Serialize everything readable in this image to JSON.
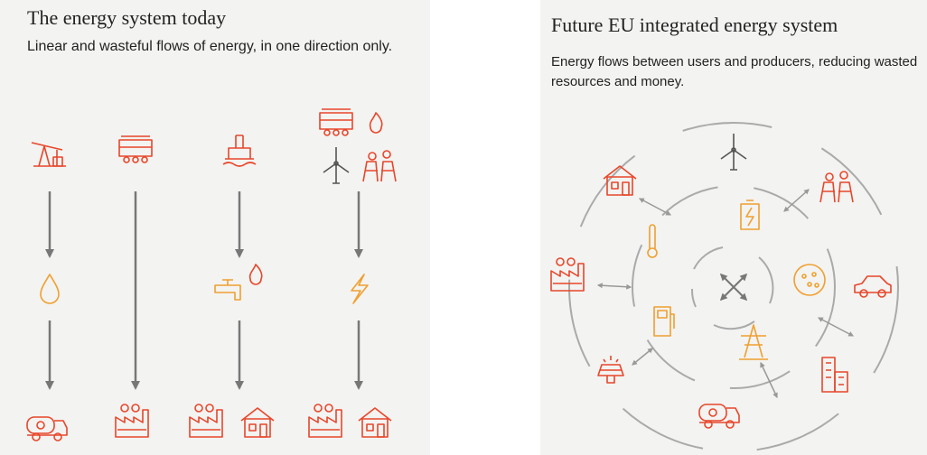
{
  "left": {
    "title": "The energy system today",
    "subtitle": "Linear and wasteful flows of energy, in one direction only."
  },
  "right": {
    "title": "Future EU integrated energy system",
    "subtitle": "Energy flows between users and producers, reducing wasted resources and money."
  }
}
